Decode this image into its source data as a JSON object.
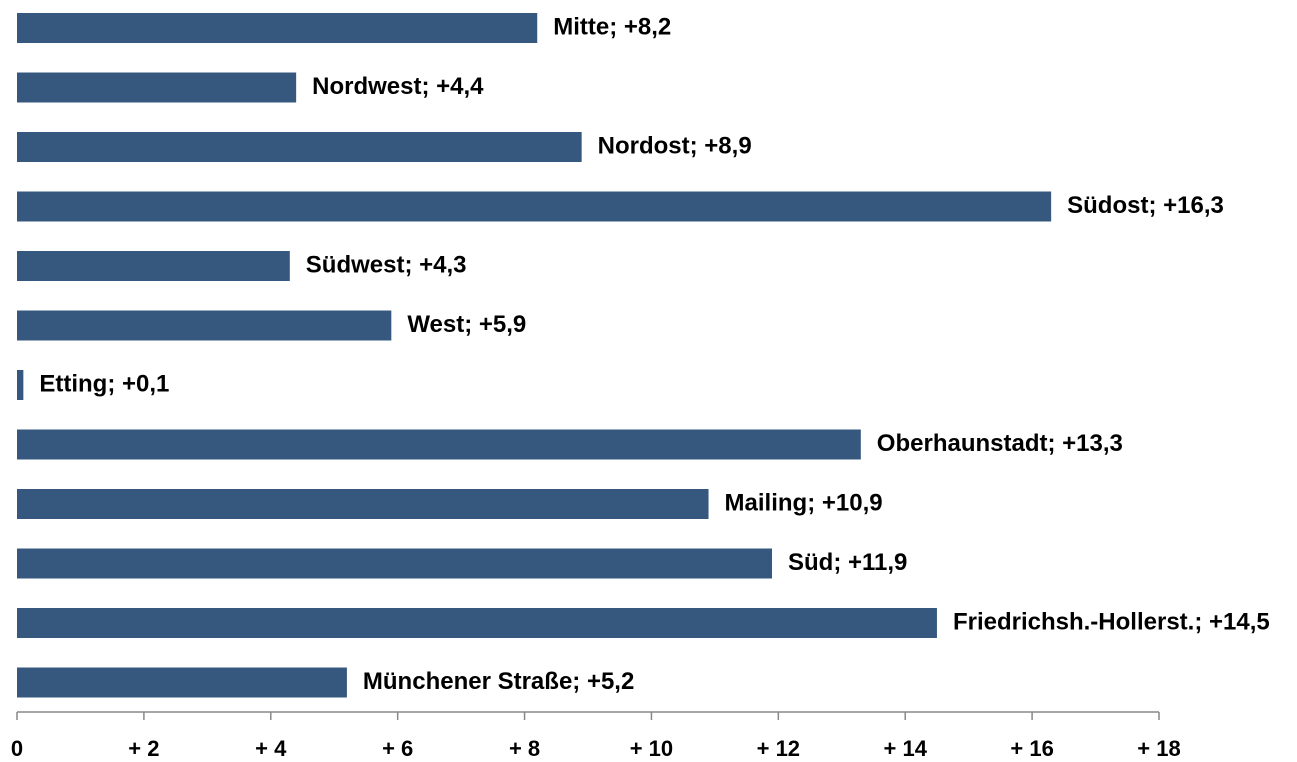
{
  "chart_data": {
    "type": "bar",
    "orientation": "horizontal",
    "values": [
      8.2,
      4.4,
      8.9,
      16.3,
      4.3,
      5.9,
      0.1,
      13.3,
      10.9,
      11.9,
      14.5,
      5.2
    ],
    "value_labels": [
      "Mitte; +8,2",
      "Nordwest; +4,4",
      "Nordost; +8,9",
      "Südost; +16,3",
      "Südwest; +4,3",
      "West; +5,9",
      "Etting; +0,1",
      "Oberhaunstadt; +13,3",
      "Mailing; +10,9",
      "Süd; +11,9",
      "Friedrichsh.-Hollerst.; +14,5",
      "Münchener Straße; +5,2"
    ],
    "color": "#36587f",
    "xlim": [
      0,
      18
    ],
    "xticks": [
      0,
      {
        "value": 2,
        "label": "+ 2"
      },
      {
        "value": 4,
        "label": "+ 4"
      },
      {
        "value": 6,
        "label": "+ 6"
      },
      {
        "value": 8,
        "label": "+ 8"
      },
      {
        "value": 10,
        "label": "+ 10"
      },
      {
        "value": 12,
        "label": "+ 12"
      },
      {
        "value": 14,
        "label": "+ 14"
      },
      {
        "value": 16,
        "label": "+ 16"
      },
      {
        "value": 18,
        "label": "+ 18"
      }
    ],
    "grid": false
  }
}
